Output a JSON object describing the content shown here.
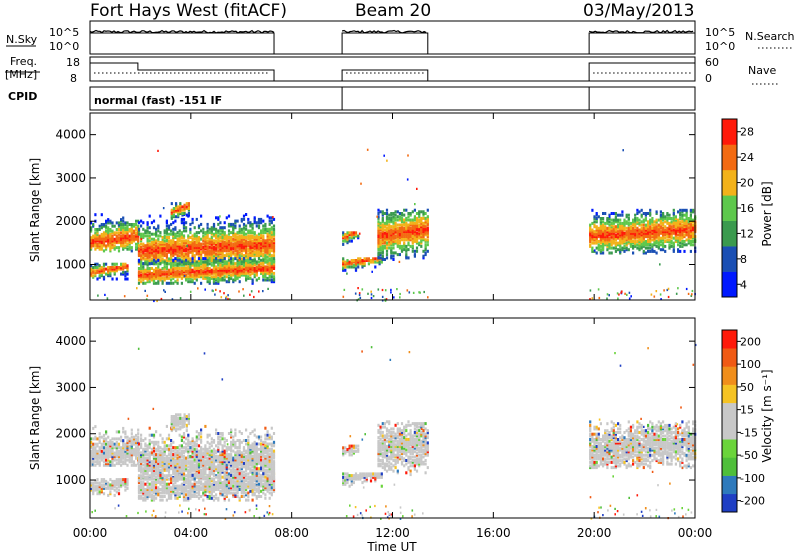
{
  "header": {
    "station": "Fort Hays West (fitACF)",
    "beam": "Beam 20",
    "date": "03/May/2013"
  },
  "strips": {
    "nsky_label": "N.Sky",
    "nsearch_label": "N.Search",
    "log_top_label": "10^5",
    "log_bottom_label": "10^0",
    "freq_label_1": "Freq.",
    "freq_label_2": "[MHz]",
    "freq_top": "18",
    "freq_bottom": "8",
    "nave_label": "Nave",
    "nave_top": "60",
    "nave_bottom": "0",
    "cpid_label": "CPID",
    "cpid_text": "normal (fast) -151 IF"
  },
  "colors": {
    "power": [
      "#0019ff",
      "#1a4fb4",
      "#3a9a4e",
      "#5ec84c",
      "#f3b21a",
      "#f36b12",
      "#ff1a0a"
    ],
    "velocity": [
      "#1f3fc4",
      "#2e7abc",
      "#4fbf3a",
      "#6ad43a",
      "#c8c8c8",
      "#c8c8c8",
      "#f5c324",
      "#f08e1b",
      "#f05a14",
      "#ff1a0a"
    ]
  },
  "chart_data": [
    {
      "type": "heatmap",
      "title": "",
      "xlabel": "",
      "ylabel": "Slant Range [km]",
      "x_ticks": [
        "00:00",
        "04:00",
        "08:00",
        "12:00",
        "16:00",
        "20:00",
        "00:00"
      ],
      "y_ticks": [
        "1000",
        "2000",
        "3000",
        "4000"
      ],
      "xlim_hours": [
        0,
        24
      ],
      "ylim_km": [
        180,
        4500
      ],
      "colorbar": {
        "label": "Power [dB]",
        "ticks": [
          "4",
          "8",
          "12",
          "16",
          "20",
          "24",
          "28"
        ]
      },
      "echo_bands": [
        {
          "t0": 0.0,
          "t1": 1.9,
          "r0": 1350,
          "r1": 2200,
          "core": 1550
        },
        {
          "t0": 0.0,
          "t1": 1.5,
          "r0": 700,
          "r1": 1050,
          "core": 850
        },
        {
          "t0": 1.9,
          "t1": 7.3,
          "r0": 1050,
          "r1": 2200,
          "core": 1350
        },
        {
          "t0": 1.9,
          "t1": 7.3,
          "r0": 600,
          "r1": 1200,
          "core": 800
        },
        {
          "t0": 3.2,
          "t1": 3.9,
          "r0": 2100,
          "r1": 2450,
          "core": 2250
        },
        {
          "t0": 10.0,
          "t1": 10.6,
          "r0": 1500,
          "r1": 1800,
          "core": 1650
        },
        {
          "t0": 10.0,
          "t1": 11.6,
          "r0": 900,
          "r1": 1200,
          "core": 1050
        },
        {
          "t0": 11.4,
          "t1": 13.4,
          "r0": 1150,
          "r1": 2300,
          "core": 1700
        },
        {
          "t0": 19.8,
          "t1": 24.0,
          "r0": 1300,
          "r1": 2300,
          "core": 1700
        }
      ]
    },
    {
      "type": "heatmap",
      "title": "",
      "xlabel": "Time UT",
      "ylabel": "Slant Range [km]",
      "x_ticks": [
        "00:00",
        "04:00",
        "08:00",
        "12:00",
        "16:00",
        "20:00",
        "00:00"
      ],
      "y_ticks": [
        "1000",
        "2000",
        "3000",
        "4000"
      ],
      "xlim_hours": [
        0,
        24
      ],
      "ylim_km": [
        180,
        4500
      ],
      "colorbar": {
        "label": "Velocity [m s⁻¹]",
        "ticks": [
          "200",
          "100",
          "50",
          "15",
          "-15",
          "-50",
          "-100",
          "-200"
        ]
      },
      "echo_bands": [
        {
          "t0": 0.0,
          "t1": 1.9,
          "r0": 1350,
          "r1": 2200,
          "core": 1550
        },
        {
          "t0": 0.0,
          "t1": 1.5,
          "r0": 700,
          "r1": 1050,
          "core": 850
        },
        {
          "t0": 1.9,
          "t1": 7.3,
          "r0": 1050,
          "r1": 2200,
          "core": 1350
        },
        {
          "t0": 1.9,
          "t1": 7.3,
          "r0": 600,
          "r1": 1200,
          "core": 800
        },
        {
          "t0": 3.2,
          "t1": 3.9,
          "r0": 2100,
          "r1": 2450,
          "core": 2250
        },
        {
          "t0": 10.0,
          "t1": 10.6,
          "r0": 1500,
          "r1": 1800,
          "core": 1650
        },
        {
          "t0": 10.0,
          "t1": 11.6,
          "r0": 900,
          "r1": 1200,
          "core": 1050
        },
        {
          "t0": 11.4,
          "t1": 13.4,
          "r0": 1150,
          "r1": 2300,
          "core": 1700
        },
        {
          "t0": 19.8,
          "t1": 24.0,
          "r0": 1300,
          "r1": 2300,
          "core": 1700
        }
      ]
    }
  ],
  "operating_intervals_hours": [
    [
      0.0,
      7.3
    ],
    [
      10.0,
      13.4
    ],
    [
      19.8,
      24.0
    ]
  ]
}
